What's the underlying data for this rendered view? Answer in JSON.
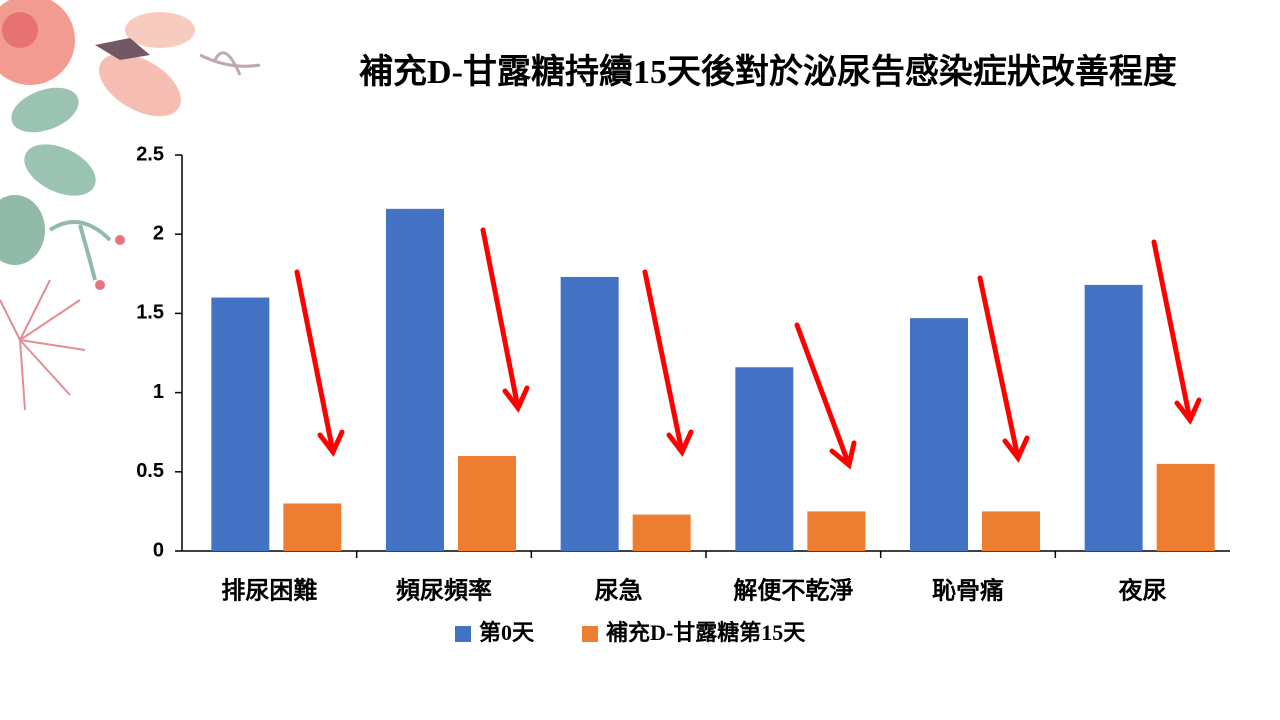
{
  "chart_data": {
    "type": "bar",
    "title": "補充D-甘露糖持續15天後對於泌尿告感染症狀改善程度",
    "categories": [
      "排尿困難",
      "頻尿頻率",
      "尿急",
      "解便不乾淨",
      "恥骨痛",
      "夜尿"
    ],
    "series": [
      {
        "name": "第0天",
        "color": "#4472c4",
        "values": [
          1.6,
          2.16,
          1.73,
          1.16,
          1.47,
          1.68
        ]
      },
      {
        "name": "補充D-甘露糖第15天",
        "color": "#ed7d31",
        "values": [
          0.3,
          0.6,
          0.23,
          0.25,
          0.25,
          0.55
        ]
      }
    ],
    "ylim": [
      0,
      2.5
    ],
    "yticks": [
      0,
      0.5,
      1,
      1.5,
      2,
      2.5
    ],
    "grid": false
  }
}
